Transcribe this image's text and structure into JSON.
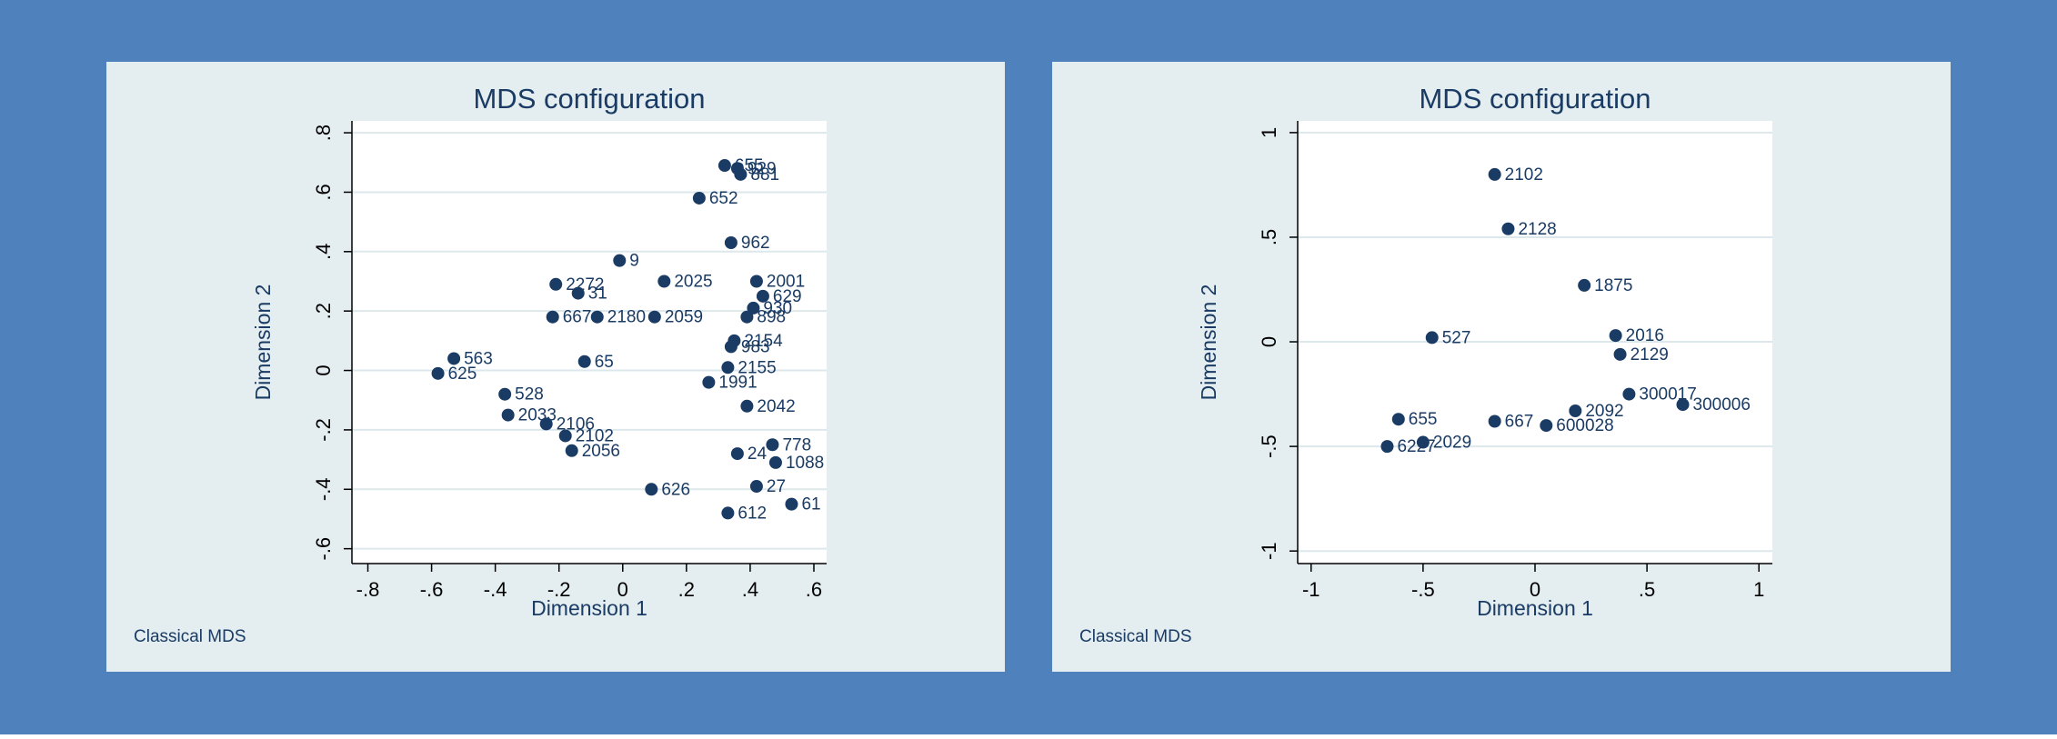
{
  "chart_data": [
    {
      "type": "scatter",
      "title": "MDS configuration",
      "xlabel": "Dimension 1",
      "ylabel": "Dimension 2",
      "note": "Classical MDS",
      "color": "#1a3b64",
      "grid": true,
      "xlim": [
        -0.85,
        0.64
      ],
      "ylim": [
        -0.65,
        0.84
      ],
      "xticks": [
        {
          "value": -0.8,
          "label": "-.8"
        },
        {
          "value": -0.6,
          "label": "-.6"
        },
        {
          "value": -0.4,
          "label": "-.4"
        },
        {
          "value": -0.2,
          "label": "-.2"
        },
        0,
        {
          "value": 0.2,
          "label": ".2"
        },
        {
          "value": 0.4,
          "label": ".4"
        },
        {
          "value": 0.6,
          "label": ".6"
        }
      ],
      "yticks": [
        {
          "value": -0.6,
          "label": "-.6"
        },
        {
          "value": -0.4,
          "label": "-.4"
        },
        {
          "value": -0.2,
          "label": "-.2"
        },
        0,
        {
          "value": 0.2,
          "label": ".2"
        },
        {
          "value": 0.4,
          "label": ".4"
        },
        {
          "value": 0.6,
          "label": ".6"
        },
        {
          "value": 0.8,
          "label": ".8"
        }
      ],
      "point_labels": [
        "655",
        "929",
        "881",
        "652",
        "962",
        "2001",
        "629",
        "930",
        "898",
        "2154",
        "983",
        "2155",
        "1991",
        "2042",
        "778",
        "1088",
        "24",
        "27",
        "61",
        "612",
        "626",
        "2056",
        "2102",
        "2106",
        "2033",
        "528",
        "625",
        "563",
        "2272",
        "667",
        "31",
        "9",
        "2180",
        "2025",
        "2059",
        "65"
      ],
      "x": [
        0.32,
        0.36,
        0.37,
        0.24,
        0.34,
        0.42,
        0.44,
        0.41,
        0.39,
        0.35,
        0.34,
        0.33,
        0.27,
        0.39,
        0.47,
        0.48,
        0.36,
        0.42,
        0.53,
        0.33,
        0.09,
        -0.16,
        -0.18,
        -0.24,
        -0.36,
        -0.37,
        -0.58,
        -0.53,
        -0.21,
        -0.22,
        -0.14,
        -0.01,
        -0.08,
        0.13,
        0.1,
        -0.12
      ],
      "values": [
        0.69,
        0.68,
        0.66,
        0.58,
        0.43,
        0.3,
        0.25,
        0.21,
        0.18,
        0.1,
        0.08,
        0.01,
        -0.04,
        -0.12,
        -0.25,
        -0.31,
        -0.28,
        -0.39,
        -0.45,
        -0.48,
        -0.4,
        -0.27,
        -0.22,
        -0.18,
        -0.15,
        -0.08,
        -0.01,
        0.04,
        0.29,
        0.18,
        0.26,
        0.37,
        0.18,
        0.3,
        0.18,
        0.03
      ]
    },
    {
      "type": "scatter",
      "title": "MDS configuration",
      "xlabel": "Dimension 1",
      "ylabel": "Dimension 2",
      "note": "Classical MDS",
      "color": "#1a3b64",
      "grid": true,
      "xlim": [
        -1.06,
        1.06
      ],
      "ylim": [
        -1.06,
        1.056
      ],
      "xticks": [
        -1,
        {
          "value": -0.5,
          "label": "-.5"
        },
        0,
        {
          "value": 0.5,
          "label": ".5"
        },
        1
      ],
      "yticks": [
        -1,
        {
          "value": -0.5,
          "label": "-.5"
        },
        0,
        {
          "value": 0.5,
          "label": ".5"
        },
        1
      ],
      "point_labels": [
        "2102",
        "2128",
        "1875",
        "2016",
        "2129",
        "300017",
        "300006",
        "2092",
        "600028",
        "667",
        "655",
        "2029",
        "6227",
        "527"
      ],
      "x": [
        -0.18,
        -0.12,
        0.22,
        0.36,
        0.38,
        0.42,
        0.66,
        0.18,
        0.05,
        -0.18,
        -0.61,
        -0.5,
        -0.66,
        -0.46
      ],
      "values": [
        0.8,
        0.54,
        0.27,
        0.03,
        -0.06,
        -0.25,
        -0.3,
        -0.33,
        -0.4,
        -0.38,
        -0.37,
        -0.48,
        -0.5,
        0.02
      ]
    }
  ]
}
